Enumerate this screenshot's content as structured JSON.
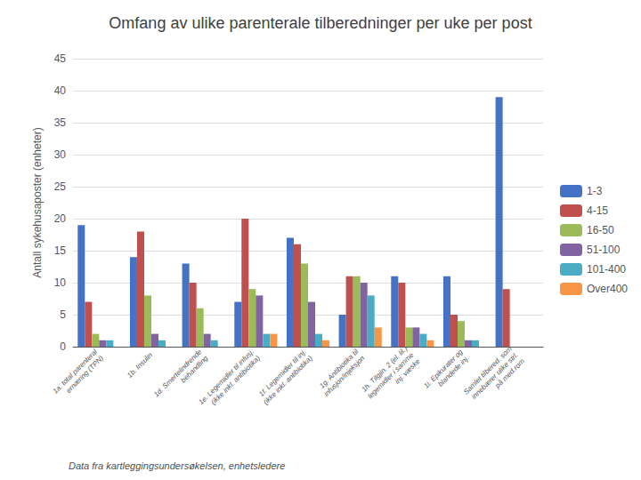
{
  "chart_data": {
    "type": "bar",
    "title": "Omfang av ulike parenterale tilberedninger per uke per post",
    "ylabel": "Antall sykehusaposter (enheter)",
    "annotations": [
      "Data fra kartleggingsundersøkelsen, enhetsledere"
    ],
    "categories": [
      "1a. total parenteral\nernæring (TPN)",
      "1b. Insulin",
      "1d. Smertelindrende\nbehandling",
      "1e. Legemidler til infusj.\n(ikke inkl. antibiotika)",
      "1f. Legemidler til inj.\n(ikke inkl. antibiotika)",
      "1g. Antibiotika til\ninfusjon/injeksjon",
      "1h. Tilgjin. 2 (el. lil.)\nlegemidler i samme\ninj. væske",
      "1i. Epikurater og\nblandede inj.",
      "Samlet tilbered. som\ninnebærer ulike strl.\npå med.rom"
    ],
    "series": [
      {
        "name": "1-3",
        "color": "#4472C4",
        "values": [
          19,
          14,
          13,
          7,
          17,
          5,
          11,
          11,
          39
        ]
      },
      {
        "name": "4-15",
        "color": "#C0504D",
        "values": [
          7,
          18,
          10,
          20,
          16,
          11,
          10,
          5,
          9
        ]
      },
      {
        "name": "16-50",
        "color": "#9BBB59",
        "values": [
          2,
          8,
          6,
          9,
          13,
          11,
          3,
          4,
          0
        ]
      },
      {
        "name": "51-100",
        "color": "#8064A2",
        "values": [
          1,
          2,
          2,
          8,
          7,
          10,
          3,
          1,
          0
        ]
      },
      {
        "name": "101-400",
        "color": "#4BACC6",
        "values": [
          1,
          1,
          1,
          2,
          2,
          8,
          2,
          1,
          0
        ]
      },
      {
        "name": "Over400",
        "color": "#F79646",
        "values": [
          0,
          0,
          0,
          2,
          1,
          3,
          1,
          0,
          0
        ]
      }
    ],
    "ylim": [
      0,
      45
    ],
    "yticks": [
      0,
      5,
      10,
      15,
      20,
      25,
      30,
      35,
      40,
      45
    ],
    "grid": true,
    "legend": "right"
  }
}
